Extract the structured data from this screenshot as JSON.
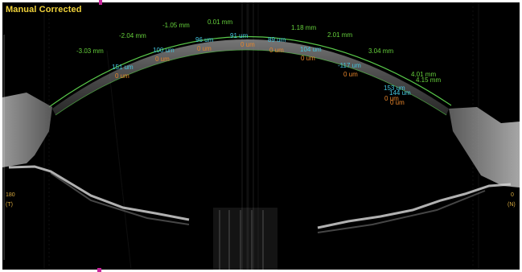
{
  "header": {
    "mode_label": "Manual Corrected"
  },
  "colors": {
    "mode_label": "#f0d23a",
    "distance_label": "#66d13c",
    "thickness_label": "#45c7e0",
    "zero_label": "#e8862b",
    "cornea_outline": "#59c84a",
    "marker": "#c6239a"
  },
  "distances": {
    "d0": "0.01 mm",
    "dl1": "-1.05 mm",
    "dl2": "-2.04 mm",
    "dl3": "-3.03 mm",
    "dr1": "1.18 mm",
    "dr2": "2.01 mm",
    "dr3": "3.04 mm",
    "dr4a": "4.01 mm",
    "dr4b": "4.15 mm"
  },
  "thickness": {
    "t91": "91 um",
    "t96": "96 um",
    "t89": "89 um",
    "t100": "100 um",
    "t104": "104 um",
    "t151": "151 um",
    "tm117": "-117 um",
    "t153": "153 um",
    "t144": "144 um"
  },
  "zeros": {
    "z1": "0 um",
    "z2": "0 um",
    "z3": "0 um",
    "z4": "0 um",
    "z5": "0 um",
    "z6": "0 um",
    "z7": "0 um",
    "z8": "0 um",
    "z9": "0 um"
  },
  "sides": {
    "left_value": "180",
    "left_tag": "(T)",
    "right_value": "0",
    "right_tag": "(N)"
  }
}
